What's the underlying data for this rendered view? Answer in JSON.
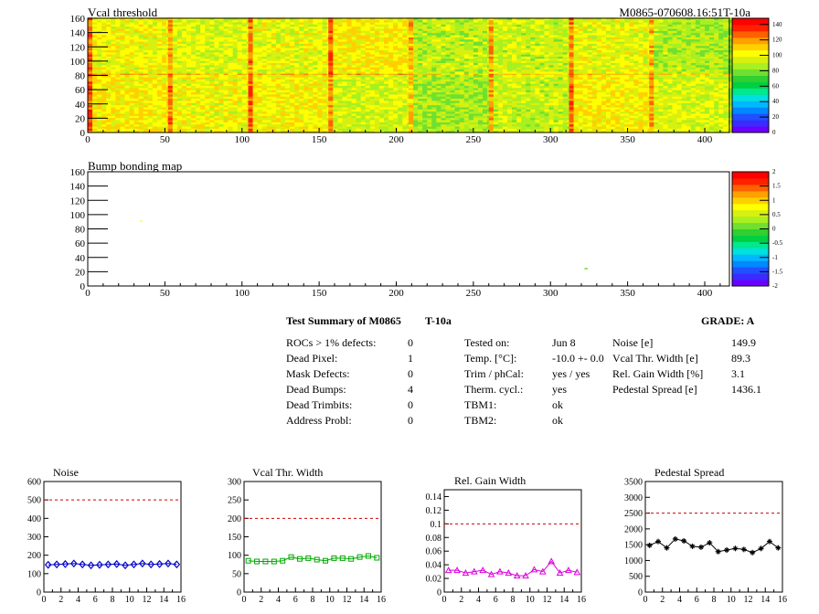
{
  "header": {
    "map1_title": "Vcal threshold",
    "module_id": "M0865-070608.16:51T-10a",
    "map2_title": "Bump bonding map"
  },
  "map_axes": {
    "x_ticks": [
      0,
      50,
      100,
      150,
      200,
      250,
      300,
      350,
      400
    ],
    "x_range": [
      0,
      416
    ],
    "y_ticks": [
      0,
      20,
      40,
      60,
      80,
      100,
      120,
      140,
      160
    ],
    "y_range": [
      0,
      160
    ]
  },
  "colorbars": [
    {
      "ticks": [
        0,
        20,
        40,
        60,
        80,
        100,
        120,
        140
      ],
      "labels": [
        "0",
        "20",
        "40",
        "60",
        "80",
        "100",
        "120",
        "140"
      ],
      "range": [
        0,
        148
      ]
    },
    {
      "ticks": [
        -2,
        -1.5,
        -1,
        -0.5,
        0,
        0.5,
        1,
        1.5,
        2
      ],
      "labels": [
        "-2",
        "-1.5",
        "-1",
        "-0.5",
        "0",
        "0.5",
        "1",
        "1.5",
        "2"
      ],
      "range": [
        -2,
        2
      ]
    }
  ],
  "palette": [
    "#6a00ff",
    "#3a2bff",
    "#2050ff",
    "#0088ff",
    "#00b8ff",
    "#00e0e0",
    "#00e890",
    "#00d040",
    "#30d030",
    "#70e030",
    "#a8f020",
    "#d8f010",
    "#ffff00",
    "#ffd000",
    "#ffa000",
    "#ff6000",
    "#ff2000",
    "#ff0000"
  ],
  "summary": {
    "title": "Test Summary of M0865",
    "temp_label": "T-10a",
    "grade_label": "GRADE:  A",
    "col1": [
      {
        "label": "ROCs > 1% defects:",
        "value": "0"
      },
      {
        "label": "Dead Pixel:",
        "value": "1"
      },
      {
        "label": "Mask Defects:",
        "value": "0"
      },
      {
        "label": "Dead Bumps:",
        "value": "4"
      },
      {
        "label": "Dead Trimbits:",
        "value": "0"
      },
      {
        "label": "Address Probl:",
        "value": "0"
      }
    ],
    "col2": [
      {
        "label": "Tested on:",
        "value": "Jun 8"
      },
      {
        "label": "Temp. [°C]:",
        "value": "-10.0 +- 0.0"
      },
      {
        "label": "Trim / phCal:",
        "value": "yes / yes"
      },
      {
        "label": "Therm. cycl.:",
        "value": "yes"
      },
      {
        "label": "TBM1:",
        "value": "ok"
      },
      {
        "label": "TBM2:",
        "value": "ok"
      }
    ],
    "col3": [
      {
        "label": "Noise [e]",
        "value": "149.9"
      },
      {
        "label": "Vcal Thr. Width [e]",
        "value": "89.3"
      },
      {
        "label": "Rel. Gain Width [%]",
        "value": "3.1"
      },
      {
        "label": "Pedestal Spread [e]",
        "value": "1436.1"
      }
    ]
  },
  "chart_data": [
    {
      "type": "heatmap",
      "title": "Vcal threshold",
      "x_range": [
        0,
        416
      ],
      "y_range": [
        0,
        160
      ],
      "z_range": [
        0,
        148
      ],
      "rocs": [
        {
          "col": 0,
          "row": 1,
          "mean": 100
        },
        {
          "col": 1,
          "row": 1,
          "mean": 96
        },
        {
          "col": 2,
          "row": 1,
          "mean": 98
        },
        {
          "col": 3,
          "row": 1,
          "mean": 104
        },
        {
          "col": 4,
          "row": 1,
          "mean": 90
        },
        {
          "col": 5,
          "row": 1,
          "mean": 92
        },
        {
          "col": 6,
          "row": 1,
          "mean": 98
        },
        {
          "col": 7,
          "row": 1,
          "mean": 88
        },
        {
          "col": 0,
          "row": 0,
          "mean": 104
        },
        {
          "col": 1,
          "row": 0,
          "mean": 100
        },
        {
          "col": 2,
          "row": 0,
          "mean": 102
        },
        {
          "col": 3,
          "row": 0,
          "mean": 94
        },
        {
          "col": 4,
          "row": 0,
          "mean": 86
        },
        {
          "col": 5,
          "row": 0,
          "mean": 92
        },
        {
          "col": 6,
          "row": 0,
          "mean": 104
        },
        {
          "col": 7,
          "row": 0,
          "mean": 94
        }
      ]
    },
    {
      "type": "heatmap",
      "title": "Bump bonding map",
      "x_range": [
        0,
        416
      ],
      "y_range": [
        0,
        160
      ],
      "z_range": [
        -2,
        2
      ],
      "points": [
        {
          "x": 34,
          "y": 91,
          "z": 0.8
        },
        {
          "x": 322,
          "y": 24,
          "z": 0.2
        },
        {
          "x": 323,
          "y": 24,
          "z": 0.2
        }
      ]
    },
    {
      "type": "line",
      "title": "Noise",
      "x": [
        0,
        1,
        2,
        3,
        4,
        5,
        6,
        7,
        8,
        9,
        10,
        11,
        12,
        13,
        14,
        15
      ],
      "values": [
        148,
        150,
        152,
        155,
        150,
        145,
        148,
        150,
        152,
        145,
        150,
        155,
        150,
        152,
        155,
        150
      ],
      "xlim": [
        0,
        16
      ],
      "ylim": [
        0,
        600
      ],
      "x_ticks": [
        0,
        2,
        4,
        6,
        8,
        10,
        12,
        14,
        16
      ],
      "y_ticks": [
        0,
        100,
        200,
        300,
        400,
        500,
        600
      ],
      "limit": 500,
      "color": "#0000cc",
      "marker": "diamond"
    },
    {
      "type": "line",
      "title": "Vcal Thr. Width",
      "x": [
        0,
        1,
        2,
        3,
        4,
        5,
        6,
        7,
        8,
        9,
        10,
        11,
        12,
        13,
        14,
        15
      ],
      "values": [
        85,
        83,
        83,
        83,
        85,
        95,
        90,
        92,
        88,
        85,
        92,
        92,
        90,
        95,
        98,
        93
      ],
      "xlim": [
        0,
        16
      ],
      "ylim": [
        0,
        300
      ],
      "x_ticks": [
        0,
        2,
        4,
        6,
        8,
        10,
        12,
        14,
        16
      ],
      "y_ticks": [
        0,
        50,
        100,
        150,
        200,
        250,
        300
      ],
      "limit": 200,
      "color": "#00aa00",
      "marker": "square"
    },
    {
      "type": "line",
      "title": "Rel. Gain Width",
      "x": [
        0,
        1,
        2,
        3,
        4,
        5,
        6,
        7,
        8,
        9,
        10,
        11,
        12,
        13,
        14,
        15
      ],
      "values": [
        0.032,
        0.032,
        0.028,
        0.03,
        0.032,
        0.026,
        0.03,
        0.028,
        0.024,
        0.024,
        0.033,
        0.03,
        0.045,
        0.028,
        0.032,
        0.029
      ],
      "xlim": [
        0,
        16
      ],
      "ylim": [
        0,
        0.15
      ],
      "x_ticks": [
        0,
        2,
        4,
        6,
        8,
        10,
        12,
        14,
        16
      ],
      "y_ticks": [
        0,
        0.02,
        0.04,
        0.06,
        0.08,
        0.1,
        0.12,
        0.14
      ],
      "limit": 0.1,
      "color": "#dd00dd",
      "marker": "triangle"
    },
    {
      "type": "line",
      "title": "Pedestal Spread",
      "x": [
        0,
        1,
        2,
        3,
        4,
        5,
        6,
        7,
        8,
        9,
        10,
        11,
        12,
        13,
        14,
        15
      ],
      "values": [
        1480,
        1600,
        1400,
        1680,
        1620,
        1450,
        1420,
        1560,
        1280,
        1330,
        1380,
        1350,
        1250,
        1380,
        1600,
        1400
      ],
      "xlim": [
        0,
        16
      ],
      "ylim": [
        0,
        3500
      ],
      "x_ticks": [
        0,
        2,
        4,
        6,
        8,
        10,
        12,
        14,
        16
      ],
      "y_ticks": [
        0,
        500,
        1000,
        1500,
        2000,
        2500,
        3000,
        3500
      ],
      "limit": 2500,
      "color": "#000000",
      "marker": "star"
    }
  ]
}
